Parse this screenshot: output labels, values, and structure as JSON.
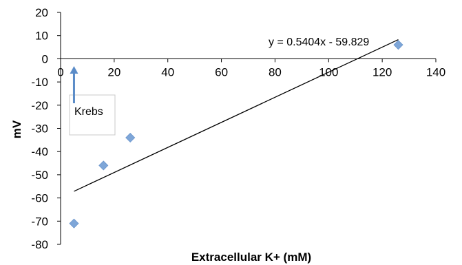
{
  "chart_data": {
    "type": "scatter",
    "xlabel": "Extracellular K+ (mM)",
    "ylabel": "mV",
    "xlim": [
      0,
      140
    ],
    "ylim": [
      -80,
      20
    ],
    "x_ticks": [
      "0",
      "20",
      "40",
      "60",
      "80",
      "100",
      "120",
      "140"
    ],
    "y_ticks": [
      "20",
      "10",
      "0",
      "-10",
      "-20",
      "-30",
      "-40",
      "-50",
      "-60",
      "-70",
      "-80"
    ],
    "points": [
      {
        "x": 5,
        "y": -71
      },
      {
        "x": 16,
        "y": -46
      },
      {
        "x": 26,
        "y": -34
      },
      {
        "x": 126,
        "y": 6
      }
    ],
    "trendline": {
      "equation": "y = 0.5404x - 59.829",
      "slope": 0.5404,
      "intercept": -59.829,
      "x_range": [
        5,
        126
      ]
    },
    "annotation": {
      "text": "Krebs",
      "points_to_x": 5
    },
    "marker_color": "#7ea6d8",
    "line_color": "#000000",
    "grid": false,
    "legend": "none"
  }
}
